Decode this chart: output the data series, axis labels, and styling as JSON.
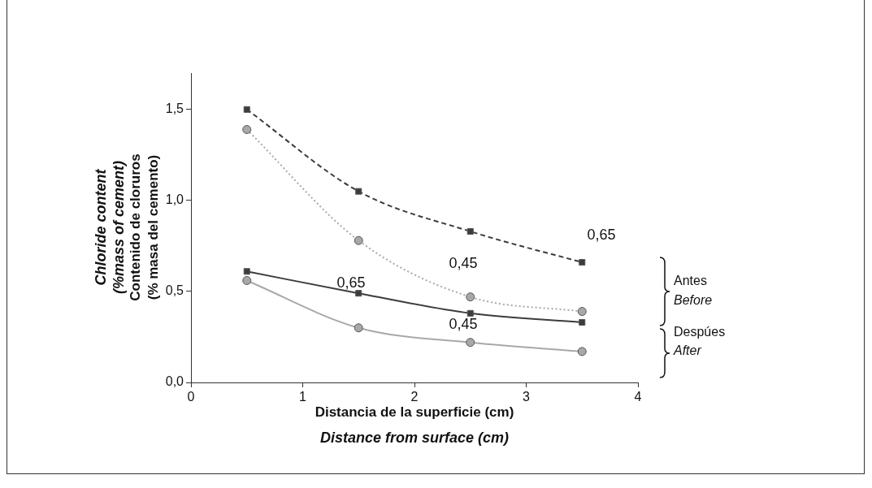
{
  "chart_data": {
    "type": "line",
    "xlabel": "Distancia de la superficie (cm)",
    "ylabel": "Contenido de cloruros (% masa del cemento)",
    "x": [
      0.5,
      1.5,
      2.5,
      3.5
    ],
    "series": [
      {
        "color": "#3c3c3c",
        "values": [
          1.5,
          1.05,
          0.83,
          0.66
        ],
        "marker": "square",
        "line_style": "dashed"
      },
      {
        "color": "#a8a8a8",
        "values": [
          1.39,
          0.78,
          0.47,
          0.39
        ],
        "marker": "circle",
        "line_style": "dotted"
      },
      {
        "color": "#3c3c3c",
        "values": [
          0.61,
          0.49,
          0.38,
          0.33
        ],
        "marker": "square",
        "line_style": "solid"
      },
      {
        "color": "#a8a8a8",
        "values": [
          0.56,
          0.3,
          0.22,
          0.17
        ],
        "marker": "circle",
        "line_style": "solid"
      }
    ],
    "xlim": [
      0,
      4
    ],
    "xticks": [
      0,
      1,
      2,
      3,
      4
    ],
    "ylim": [
      0,
      1.7
    ],
    "yticks": [
      {
        "value": 0,
        "label": "0,0"
      },
      {
        "value": 0.5,
        "label": "0,5"
      },
      {
        "value": 1,
        "label": "1,0"
      },
      {
        "value": 1.5,
        "label": "1,5"
      }
    ],
    "grid": false,
    "legend": false,
    "annotations": [
      "0,65",
      "0,45",
      "0,65",
      "0,45",
      "Antes",
      "Before",
      "Despúes",
      "After",
      "Chloride content (%mass of cement)",
      "Distance from surface (cm)"
    ]
  }
}
